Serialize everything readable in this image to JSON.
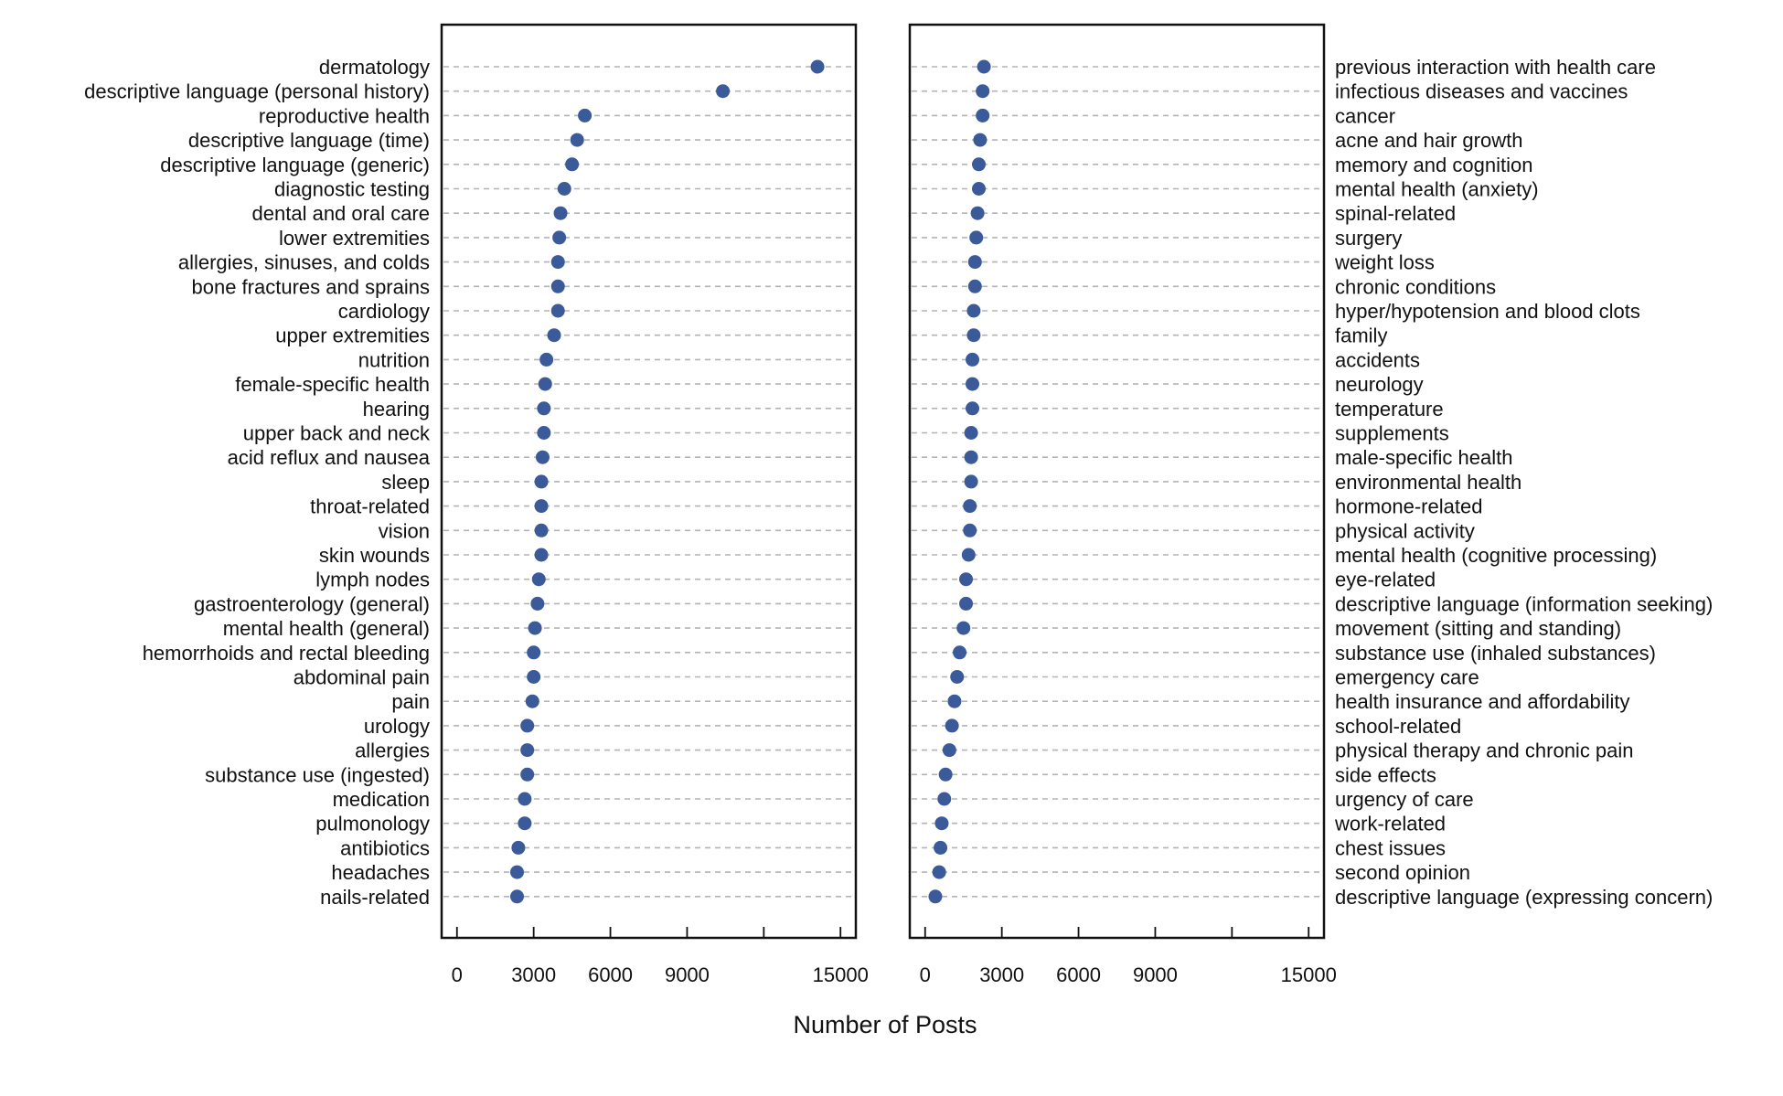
{
  "chart_data": {
    "type": "scatter",
    "xlabel": "Number of Posts",
    "xlim": [
      -600,
      15600
    ],
    "xticks": [
      0,
      3000,
      6000,
      9000,
      12000,
      15000
    ],
    "xtick_labels": [
      "0",
      "3000",
      "6000",
      "9000",
      "",
      "15000"
    ],
    "grid": "horizontal dashed",
    "marker_color": "#3a5a9a",
    "panels": [
      {
        "label_side": "left",
        "categories": [
          "dermatology",
          "descriptive language (personal history)",
          "reproductive health",
          "descriptive language (time)",
          "descriptive language (generic)",
          "diagnostic testing",
          "dental and oral care",
          "lower extremities",
          "allergies, sinuses, and colds",
          "bone fractures and sprains",
          "cardiology",
          "upper extremities",
          "nutrition",
          "female-specific health",
          "hearing",
          "upper back and neck",
          "acid reflux and nausea",
          "sleep",
          "throat-related",
          "vision",
          "skin wounds",
          "lymph nodes",
          "gastroenterology (general)",
          "mental health (general)",
          "hemorrhoids and rectal bleeding",
          "abdominal pain",
          "pain",
          "urology",
          "allergies",
          "substance use (ingested)",
          "medication",
          "pulmonology",
          "antibiotics",
          "headaches",
          "nails-related"
        ],
        "values": [
          14100,
          10400,
          5000,
          4700,
          4500,
          4200,
          4050,
          4000,
          3950,
          3950,
          3950,
          3800,
          3500,
          3450,
          3400,
          3400,
          3350,
          3300,
          3300,
          3300,
          3300,
          3200,
          3150,
          3050,
          3000,
          3000,
          2950,
          2750,
          2750,
          2750,
          2650,
          2650,
          2400,
          2350,
          2350
        ]
      },
      {
        "label_side": "right",
        "categories": [
          "previous interaction with health care",
          "infectious diseases and vaccines",
          "cancer",
          "acne and hair growth",
          "memory and cognition",
          "mental health (anxiety)",
          "spinal-related",
          "surgery",
          "weight loss",
          "chronic conditions",
          "hyper/hypotension and blood clots",
          "family",
          "accidents",
          "neurology",
          "temperature",
          "supplements",
          "male-specific health",
          "environmental health",
          "hormone-related",
          "physical activity",
          "mental health (cognitive processing)",
          "eye-related",
          "descriptive language (information seeking)",
          "movement (sitting and standing)",
          "substance use (inhaled substances)",
          "emergency care",
          "health insurance and affordability",
          "school-related",
          "physical therapy and chronic pain",
          "side effects",
          "urgency of care",
          "work-related",
          "chest issues",
          "second opinion",
          "descriptive language (expressing concern)"
        ],
        "values": [
          2300,
          2250,
          2250,
          2150,
          2100,
          2100,
          2050,
          2000,
          1950,
          1950,
          1900,
          1900,
          1850,
          1850,
          1850,
          1800,
          1800,
          1800,
          1750,
          1750,
          1700,
          1600,
          1600,
          1500,
          1350,
          1250,
          1150,
          1050,
          950,
          800,
          750,
          650,
          600,
          550,
          400
        ]
      }
    ]
  }
}
